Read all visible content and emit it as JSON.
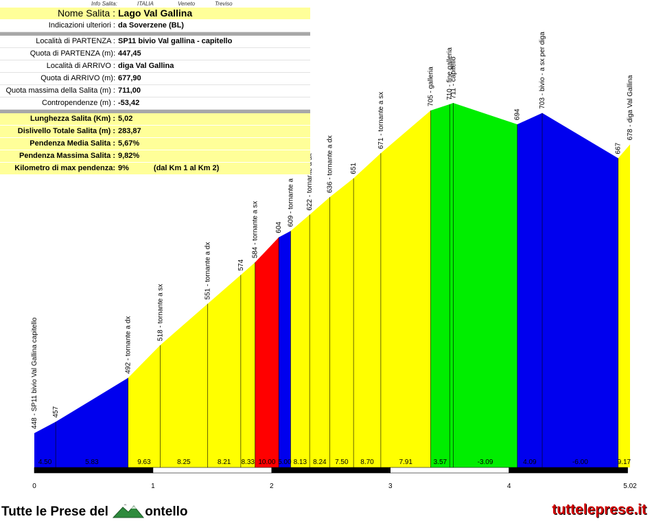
{
  "info_header": {
    "label": "Info Salita:",
    "country": "ITALIA",
    "region": "Veneto",
    "province": "Treviso"
  },
  "info": {
    "title": {
      "label": "Nome Salita :",
      "value": "Lago Val Gallina"
    },
    "directions": {
      "label": "Indicazioni ulteriori :",
      "value": "da Soverzene (BL)"
    },
    "rows": [
      {
        "label": "Località di PARTENZA :",
        "value": "SP11 bivio Val gallina - capitello"
      },
      {
        "label": "Quota di PARTENZA (m):",
        "value": "447,45"
      },
      {
        "label": "Località di ARRIVO :",
        "value": "diga Val Gallina"
      },
      {
        "label": "Quota di ARRIVO (m):",
        "value": "677,90"
      },
      {
        "label": "Quota massima della Salita (m) :",
        "value": "711,00"
      },
      {
        "label": "Contropendenze (m) :",
        "value": "-53,42"
      }
    ],
    "summary": [
      {
        "label": "Lunghezza Salita (Km) :",
        "value": "5,02"
      },
      {
        "label": "Dislivello Totale Salita (m) :",
        "value": "283,87"
      },
      {
        "label": "Pendenza Media Salita :",
        "value": "5,67%"
      },
      {
        "label": "Pendenza Massima Salita :",
        "value": "9,82%"
      },
      {
        "label": "Kilometro di max pendenza:",
        "value": "9%",
        "extra": "(dal Km 1 al Km 2)"
      }
    ]
  },
  "branding": {
    "left_text_1": "Tutte le Prese del",
    "left_text_2": "ontello",
    "right_text": "tutteleprese.it"
  },
  "colors": {
    "blue": "#0000ee",
    "yellow": "#ffff00",
    "red": "#ff0000",
    "green": "#00ee00"
  },
  "chart_data": {
    "type": "area",
    "title": "",
    "xlabel": "",
    "ylabel": "",
    "xlim": [
      0,
      5.02
    ],
    "x_ticks": [
      0,
      1,
      2,
      3,
      4,
      5.02
    ],
    "x_tick_labels": [
      "0",
      "1",
      "2",
      "3",
      "4",
      "5.02"
    ],
    "profile": [
      {
        "km": 0.0,
        "alt": 448,
        "label": "448 - SP11 bivio Val Gallina capitello"
      },
      {
        "km": 0.18,
        "alt": 457,
        "label": "457"
      },
      {
        "km": 0.79,
        "alt": 492,
        "label": "492 - tornante a dx"
      },
      {
        "km": 1.06,
        "alt": 518,
        "label": "518 - tornante a sx"
      },
      {
        "km": 1.46,
        "alt": 551,
        "label": "551 - tornante a dx"
      },
      {
        "km": 1.74,
        "alt": 574,
        "label": "574"
      },
      {
        "km": 1.86,
        "alt": 584,
        "label": "584 - tornante a sx"
      },
      {
        "km": 2.06,
        "alt": 604,
        "label": "604"
      },
      {
        "km": 2.16,
        "alt": 609,
        "label": "609 - tornante a"
      },
      {
        "km": 2.32,
        "alt": 622,
        "label": "622 - tornante a sx"
      },
      {
        "km": 2.49,
        "alt": 636,
        "label": "636 - tornante a dx"
      },
      {
        "km": 2.69,
        "alt": 651,
        "label": "651"
      },
      {
        "km": 2.92,
        "alt": 671,
        "label": "671 - tornante a sx"
      },
      {
        "km": 3.34,
        "alt": 705,
        "label": "705 - galleria"
      },
      {
        "km": 3.5,
        "alt": 710,
        "label": "710 - fine galleria"
      },
      {
        "km": 3.53,
        "alt": 711,
        "label": "711 - capitello"
      },
      {
        "km": 4.07,
        "alt": 694,
        "label": "694"
      },
      {
        "km": 4.28,
        "alt": 703,
        "label": "703 - bivio - a sx per diga"
      },
      {
        "km": 4.92,
        "alt": 667,
        "label": "667"
      },
      {
        "km": 5.02,
        "alt": 678,
        "label": "678 - diga Val Gallina"
      }
    ],
    "segments": [
      {
        "slope": "4.50",
        "color": "blue"
      },
      {
        "slope": "5.83",
        "color": "blue"
      },
      {
        "slope": "9.63",
        "color": "yellow"
      },
      {
        "slope": "8.25",
        "color": "yellow"
      },
      {
        "slope": "8.21",
        "color": "yellow"
      },
      {
        "slope": "8.33",
        "color": "yellow"
      },
      {
        "slope": "10.00",
        "color": "red"
      },
      {
        "slope": "5.00",
        "color": "blue"
      },
      {
        "slope": "8.13",
        "color": "yellow"
      },
      {
        "slope": "8.24",
        "color": "yellow"
      },
      {
        "slope": "7.50",
        "color": "yellow"
      },
      {
        "slope": "8.70",
        "color": "yellow"
      },
      {
        "slope": "7.91",
        "color": "yellow"
      },
      {
        "slope": "3.57",
        "color": "green"
      },
      {
        "slope": "",
        "color": "green"
      },
      {
        "slope": "-3.09",
        "color": "green"
      },
      {
        "slope": "4.09",
        "color": "blue"
      },
      {
        "slope": "-6.00",
        "color": "blue"
      },
      {
        "slope": "9.17",
        "color": "yellow"
      }
    ]
  }
}
